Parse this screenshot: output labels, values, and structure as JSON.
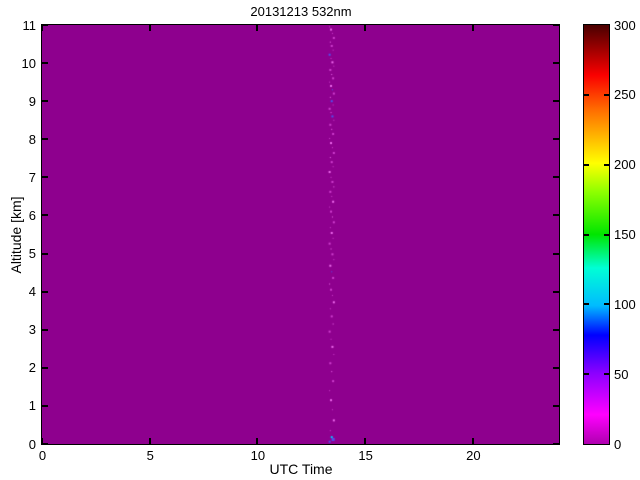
{
  "figure": {
    "title": "20131213 532nm",
    "background_color": "#ffffff"
  },
  "chart_data": {
    "type": "heatmap",
    "title": "20131213 532nm",
    "xlabel": "UTC Time",
    "ylabel": "Altitude [km]",
    "xlim": [
      0,
      24
    ],
    "ylim": [
      0,
      11
    ],
    "xticks": [
      0,
      5,
      10,
      15,
      20
    ],
    "yticks": [
      0,
      1,
      2,
      3,
      4,
      5,
      6,
      7,
      8,
      9,
      10,
      11
    ],
    "grid": false,
    "background_value": 0,
    "background_color": "#8E008E",
    "colorbar": {
      "min": 0,
      "max": 300,
      "ticks": [
        0,
        50,
        100,
        150,
        200,
        250,
        300
      ],
      "position": "right",
      "gradient_stops_bottom_to_top": [
        {
          "p": 0,
          "c": "#AF00AF"
        },
        {
          "p": 7,
          "c": "#FF00FF"
        },
        {
          "p": 17,
          "c": "#8A00FF"
        },
        {
          "p": 26,
          "c": "#0000FF"
        },
        {
          "p": 33,
          "c": "#00BBFF"
        },
        {
          "p": 42,
          "c": "#00FFD5"
        },
        {
          "p": 50,
          "c": "#00E600"
        },
        {
          "p": 60,
          "c": "#8CFF00"
        },
        {
          "p": 67,
          "c": "#FFFF00"
        },
        {
          "p": 80,
          "c": "#FF6A00"
        },
        {
          "p": 88,
          "c": "#FA0000"
        },
        {
          "p": 100,
          "c": "#4A0000"
        }
      ]
    },
    "noise_column": {
      "utc": 13.45,
      "description": "sparse vertical speckle-noise column; field is otherwise uniform at value 0",
      "speckle_colors": {
        "m": "#CE3ECE",
        "p": "#EE6AEE",
        "b": "#5050F0",
        "c": "#00CCFF"
      },
      "points": [
        [
          10.95,
          "m"
        ],
        [
          10.88,
          "p"
        ],
        [
          10.78,
          "m"
        ],
        [
          10.66,
          "m"
        ],
        [
          10.55,
          "p"
        ],
        [
          10.45,
          "m"
        ],
        [
          10.34,
          "m"
        ],
        [
          10.22,
          "b"
        ],
        [
          10.12,
          "m"
        ],
        [
          10.02,
          "p"
        ],
        [
          9.92,
          "m"
        ],
        [
          9.82,
          "m"
        ],
        [
          9.7,
          "p"
        ],
        [
          9.6,
          "m"
        ],
        [
          9.5,
          "m"
        ],
        [
          9.4,
          "p"
        ],
        [
          9.3,
          "b"
        ],
        [
          9.2,
          "m"
        ],
        [
          9.1,
          "p"
        ],
        [
          9.0,
          "b"
        ],
        [
          8.9,
          "m"
        ],
        [
          8.8,
          "m"
        ],
        [
          8.7,
          "p"
        ],
        [
          8.6,
          "b"
        ],
        [
          8.5,
          "m"
        ],
        [
          8.38,
          "m"
        ],
        [
          8.26,
          "p"
        ],
        [
          8.14,
          "m"
        ],
        [
          8.02,
          "m"
        ],
        [
          7.9,
          "p"
        ],
        [
          7.78,
          "m"
        ],
        [
          7.64,
          "m"
        ],
        [
          7.52,
          "p"
        ],
        [
          7.4,
          "m"
        ],
        [
          7.28,
          "m"
        ],
        [
          7.14,
          "p"
        ],
        [
          7.0,
          "m"
        ],
        [
          6.88,
          "m"
        ],
        [
          6.75,
          "p"
        ],
        [
          6.62,
          "m"
        ],
        [
          6.5,
          "m"
        ],
        [
          6.36,
          "p"
        ],
        [
          6.22,
          "m"
        ],
        [
          6.1,
          "m"
        ],
        [
          5.96,
          "p"
        ],
        [
          5.82,
          "m"
        ],
        [
          5.68,
          "m"
        ],
        [
          5.54,
          "p"
        ],
        [
          5.4,
          "m"
        ],
        [
          5.26,
          "m"
        ],
        [
          5.12,
          "p"
        ],
        [
          4.98,
          "m"
        ],
        [
          4.84,
          "m"
        ],
        [
          4.68,
          "p"
        ],
        [
          4.52,
          "b"
        ],
        [
          4.36,
          "m"
        ],
        [
          4.2,
          "p"
        ],
        [
          4.05,
          "m"
        ],
        [
          3.9,
          "m"
        ],
        [
          3.72,
          "p"
        ],
        [
          3.55,
          "m"
        ],
        [
          3.35,
          "m"
        ],
        [
          3.15,
          "p"
        ],
        [
          2.95,
          "m"
        ],
        [
          2.75,
          "m"
        ],
        [
          2.55,
          "p"
        ],
        [
          2.35,
          "m"
        ],
        [
          2.12,
          "m"
        ],
        [
          1.9,
          "p"
        ],
        [
          1.65,
          "m"
        ],
        [
          1.4,
          "m"
        ],
        [
          1.15,
          "p"
        ],
        [
          0.9,
          "m"
        ],
        [
          0.62,
          "p"
        ],
        [
          0.35,
          "m"
        ],
        [
          0.18,
          "c",
          2
        ],
        [
          0.12,
          "b",
          3
        ],
        [
          0.06,
          "b",
          2
        ]
      ]
    }
  }
}
